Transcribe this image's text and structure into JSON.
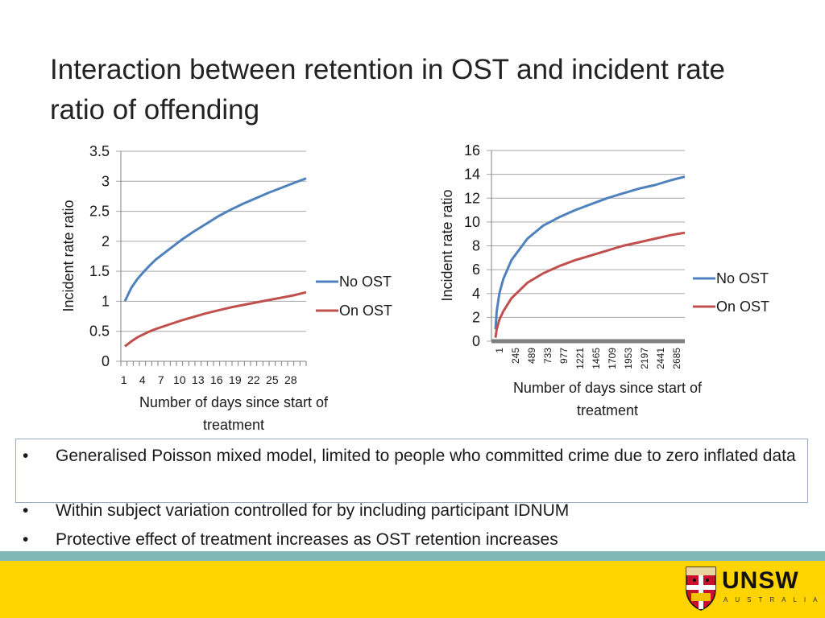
{
  "slide": {
    "title": "Interaction between retention in OST and incident rate ratio of offending",
    "bullets": [
      "Generalised Poisson mixed model, limited to people who committed crime due to zero inflated data",
      "Within subject variation controlled for by including participant IDNUM",
      "Protective effect of  treatment increases as OST retention increases"
    ],
    "bullet_symbol": "•",
    "logo": {
      "word": "UNSW",
      "sub": "AUSTRALIA"
    }
  },
  "colors": {
    "no_ost": "#4f81bd",
    "on_ost": "#c0504d",
    "teal_band": "#7fb8b4",
    "yellow_band": "#ffd400"
  },
  "chart_data": [
    {
      "type": "line",
      "ylabel": "Incident rate ratio",
      "xlabel": "Number of days since start of treatment",
      "ylim": [
        0,
        3.5
      ],
      "yticks": [
        "0",
        "0.5",
        "1",
        "1.5",
        "2",
        "2.5",
        "3",
        "3.5"
      ],
      "xlim": [
        1,
        30
      ],
      "xticks": [
        "1",
        "4",
        "7",
        "10",
        "13",
        "16",
        "19",
        "22",
        "25",
        "28"
      ],
      "grid": true,
      "legend": "right",
      "series": [
        {
          "name": "No OST",
          "x": [
            1,
            2,
            3,
            4,
            5,
            6,
            8,
            10,
            12,
            14,
            16,
            18,
            20,
            22,
            24,
            26,
            28,
            30
          ],
          "values": [
            1.0,
            1.22,
            1.37,
            1.49,
            1.6,
            1.7,
            1.86,
            2.02,
            2.16,
            2.29,
            2.42,
            2.53,
            2.63,
            2.72,
            2.81,
            2.89,
            2.97,
            3.05
          ]
        },
        {
          "name": "On OST",
          "x": [
            1,
            2,
            3,
            4,
            5,
            6,
            8,
            10,
            12,
            14,
            16,
            18,
            20,
            22,
            24,
            26,
            28,
            30
          ],
          "values": [
            0.25,
            0.33,
            0.4,
            0.45,
            0.5,
            0.54,
            0.61,
            0.68,
            0.74,
            0.8,
            0.85,
            0.9,
            0.94,
            0.98,
            1.02,
            1.06,
            1.1,
            1.15
          ]
        }
      ]
    },
    {
      "type": "line",
      "ylabel": "Incident rate ratio",
      "xlabel": "Number of days since start of treatment",
      "ylim": [
        0,
        16
      ],
      "yticks": [
        "0",
        "2",
        "4",
        "6",
        "8",
        "10",
        "12",
        "14",
        "16"
      ],
      "xlim": [
        1,
        2900
      ],
      "xticks": [
        "1",
        "245",
        "489",
        "733",
        "977",
        "1221",
        "1465",
        "1709",
        "1953",
        "2197",
        "2441",
        "2685"
      ],
      "grid": true,
      "legend": "right",
      "series": [
        {
          "name": "No OST",
          "x": [
            1,
            20,
            60,
            120,
            245,
            489,
            733,
            977,
            1221,
            1465,
            1709,
            1953,
            2197,
            2441,
            2685,
            2900
          ],
          "values": [
            1.0,
            2.5,
            4.0,
            5.2,
            6.8,
            8.6,
            9.7,
            10.4,
            11.0,
            11.5,
            12.0,
            12.4,
            12.8,
            13.1,
            13.5,
            13.8
          ]
        },
        {
          "name": "On OST",
          "x": [
            1,
            20,
            60,
            120,
            245,
            489,
            733,
            977,
            1221,
            1465,
            1709,
            1953,
            2197,
            2441,
            2685,
            2900
          ],
          "values": [
            0.3,
            1.0,
            1.8,
            2.5,
            3.6,
            4.9,
            5.7,
            6.3,
            6.8,
            7.2,
            7.6,
            8.0,
            8.3,
            8.6,
            8.9,
            9.1
          ]
        }
      ]
    }
  ]
}
